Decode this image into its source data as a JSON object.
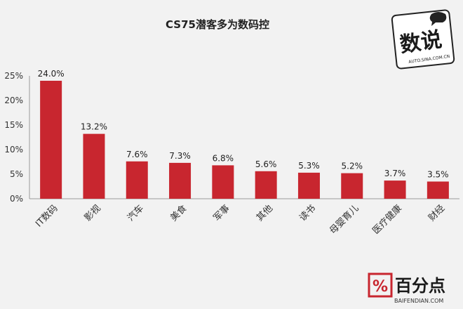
{
  "chart_data": {
    "type": "bar",
    "title": "CS75潜客多为数码控",
    "categories": [
      "IT数码",
      "影视",
      "汽车",
      "美食",
      "军事",
      "其他",
      "读书",
      "母婴育儿",
      "医疗健康",
      "财经"
    ],
    "values": [
      24.0,
      13.2,
      7.6,
      7.3,
      6.8,
      5.6,
      5.3,
      5.2,
      3.7,
      3.5
    ],
    "data_labels": [
      "24.0%",
      "13.2%",
      "7.6%",
      "7.3%",
      "6.8%",
      "5.6%",
      "5.3%",
      "5.2%",
      "3.7%",
      "3.5%"
    ],
    "yticks": [
      "0%",
      "5%",
      "10%",
      "15%",
      "20%",
      "25%"
    ],
    "ylim": [
      0,
      25
    ],
    "grid": false,
    "bar_color": "#c8262f"
  },
  "watermark": {
    "top_logo_text": "数说",
    "top_logo_url": "AUTO.SINA.COM.CN",
    "bottom_logo_text": "百分点",
    "bottom_logo_url": "BAIFENDIAN.COM",
    "bottom_logo_symbol": "%"
  }
}
